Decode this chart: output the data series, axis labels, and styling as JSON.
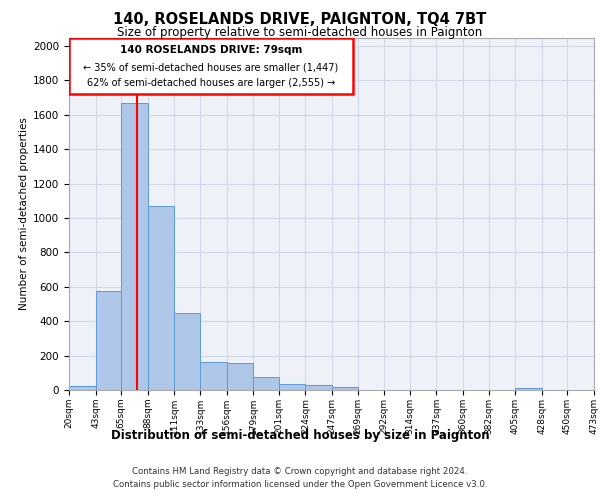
{
  "title": "140, ROSELANDS DRIVE, PAIGNTON, TQ4 7BT",
  "subtitle": "Size of property relative to semi-detached houses in Paignton",
  "xlabel": "Distribution of semi-detached houses by size in Paignton",
  "ylabel": "Number of semi-detached properties",
  "footer_line1": "Contains HM Land Registry data © Crown copyright and database right 2024.",
  "footer_line2": "Contains public sector information licensed under the Open Government Licence v3.0.",
  "annotation_title": "140 ROSELANDS DRIVE: 79sqm",
  "annotation_line1": "← 35% of semi-detached houses are smaller (1,447)",
  "annotation_line2": "62% of semi-detached houses are larger (2,555) →",
  "property_size": 79,
  "bar_left_edges": [
    20,
    43,
    65,
    88,
    111,
    133,
    156,
    179,
    201,
    224,
    247,
    269,
    292,
    314,
    337,
    360,
    382,
    405,
    428,
    450
  ],
  "bar_widths": [
    23,
    22,
    23,
    23,
    22,
    23,
    23,
    22,
    23,
    23,
    22,
    23,
    22,
    23,
    23,
    22,
    23,
    23,
    22,
    23
  ],
  "bar_heights": [
    25,
    575,
    1670,
    1070,
    450,
    160,
    155,
    75,
    35,
    30,
    20,
    0,
    0,
    0,
    0,
    0,
    0,
    10,
    0,
    0
  ],
  "bar_color": "#aec6e8",
  "bar_edge_color": "#5b9bd5",
  "red_line_x": 79,
  "ylim": [
    0,
    2050
  ],
  "yticks": [
    0,
    200,
    400,
    600,
    800,
    1000,
    1200,
    1400,
    1600,
    1800,
    2000
  ],
  "tick_labels": [
    "20sqm",
    "43sqm",
    "65sqm",
    "88sqm",
    "111sqm",
    "133sqm",
    "156sqm",
    "179sqm",
    "201sqm",
    "224sqm",
    "247sqm",
    "269sqm",
    "292sqm",
    "314sqm",
    "337sqm",
    "360sqm",
    "382sqm",
    "405sqm",
    "428sqm",
    "450sqm",
    "473sqm"
  ],
  "grid_color": "#d0d8e8",
  "background_color": "#eef2f8"
}
